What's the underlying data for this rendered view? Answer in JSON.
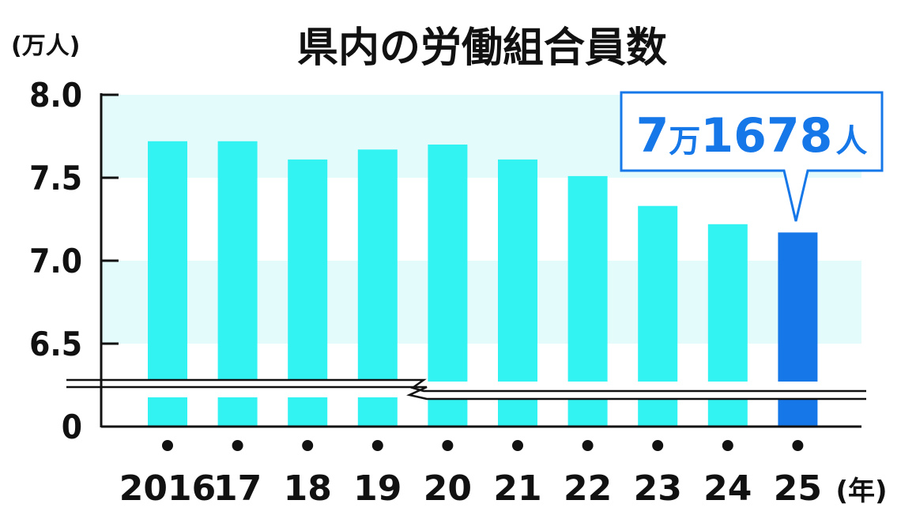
{
  "chart_data": {
    "type": "bar",
    "title": "県内の労働組合員数",
    "yunit": "(万人)",
    "xunit": "(年)",
    "categories": [
      "2016",
      "17",
      "18",
      "19",
      "20",
      "21",
      "22",
      "23",
      "24",
      "25"
    ],
    "values": [
      7.72,
      7.72,
      7.61,
      7.67,
      7.7,
      7.61,
      7.51,
      7.33,
      7.22,
      7.17
    ],
    "highlight_index": 9,
    "yticks": [
      "8.0",
      "7.5",
      "7.0",
      "6.5",
      "0"
    ],
    "ylim": [
      6.5,
      8.0
    ],
    "axis_break": true,
    "annotation": {
      "num1": "7",
      "unit1": "万",
      "num2": "1678",
      "unit2": "人"
    },
    "colors": {
      "bar": "#33f2f2",
      "highlight": "#1677e8",
      "band": "#e3fbfb",
      "text": "#111111"
    }
  }
}
